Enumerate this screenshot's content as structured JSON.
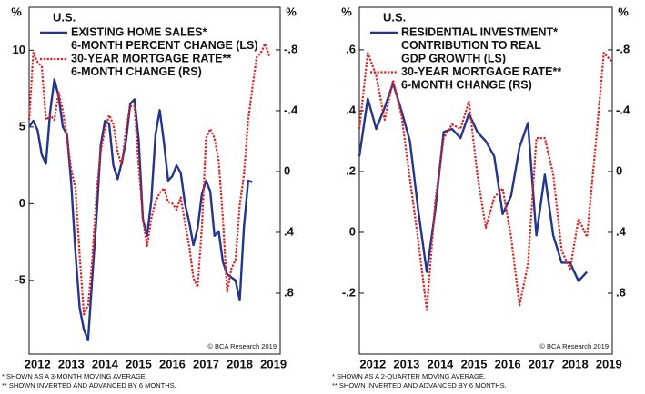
{
  "chart_data": [
    {
      "type": "line",
      "title": "U.S.",
      "y_unit": "%",
      "y2_unit": "%",
      "source": "© BCA Research 2019",
      "footnotes": [
        "* SHOWN AS A 3-MONTH MOVING AVERAGE.",
        "** SHOWN INVERTED AND ADVANCED BY 6 MONTHS."
      ],
      "xlim": [
        2012.25,
        2019.7
      ],
      "xticks": [
        {
          "value": 2012.5,
          "label": "2012"
        },
        {
          "value": 2013.5,
          "label": "2013"
        },
        {
          "value": 2014.5,
          "label": "2014"
        },
        {
          "value": 2015.5,
          "label": "2015"
        },
        {
          "value": 2016.5,
          "label": "2016"
        },
        {
          "value": 2017.5,
          "label": "2017"
        },
        {
          "value": 2018.5,
          "label": "2018"
        },
        {
          "value": 2019.5,
          "label": "2019"
        }
      ],
      "ylim": [
        -9.8,
        12.8
      ],
      "yticks": [
        -5,
        0,
        5,
        10
      ],
      "y2lim": [
        1.2,
        -1.08
      ],
      "y2ticks": [
        {
          "value": -0.8,
          "label": "-.8"
        },
        {
          "value": -0.4,
          "label": "-.4"
        },
        0,
        {
          "value": 0.4,
          "label": ".4"
        },
        {
          "value": 0.8,
          "label": ".8"
        }
      ],
      "x": [
        2012.25,
        2012.375,
        2012.5,
        2012.625,
        2012.75,
        2012.875,
        2013,
        2013.125,
        2013.25,
        2013.375,
        2013.5,
        2013.625,
        2013.75,
        2013.875,
        2014,
        2014.125,
        2014.25,
        2014.375,
        2014.5,
        2014.625,
        2014.75,
        2014.875,
        2015,
        2015.125,
        2015.25,
        2015.375,
        2015.5,
        2015.625,
        2015.75,
        2015.875,
        2016,
        2016.125,
        2016.25,
        2016.375,
        2016.5,
        2016.625,
        2016.75,
        2016.875,
        2017,
        2017.125,
        2017.25,
        2017.375,
        2017.5,
        2017.625,
        2017.75,
        2017.875,
        2018,
        2018.125,
        2018.25,
        2018.375,
        2018.5,
        2018.625,
        2018.75,
        2018.875,
        2019,
        2019.125,
        2019.25,
        2019.375,
        2019.5,
        2019.625
      ],
      "series": [
        {
          "name": [
            "EXISTING HOME SALES*",
            "6-MONTH PERCENT CHANGE (LS)"
          ],
          "color": "#23358f",
          "style": "solid",
          "values": [
            5.0,
            5.4,
            4.8,
            3.2,
            2.6,
            6.0,
            8.1,
            7.0,
            5.0,
            4.5,
            1.3,
            -3.2,
            -6.8,
            -8.2,
            -8.9,
            -4.8,
            -0.9,
            3.8,
            5.4,
            5.2,
            2.5,
            1.6,
            2.7,
            4.1,
            6.5,
            6.8,
            4.2,
            -1.0,
            -2.1,
            0.2,
            4.5,
            6.1,
            4.0,
            1.5,
            1.8,
            2.5,
            2.0,
            0.0,
            -1.2,
            -2.7,
            -1.6,
            0.6,
            1.5,
            0.8,
            -2.1,
            -1.8,
            -3.8,
            -4.6,
            -4.8,
            -5.0,
            -6.3,
            -1.5,
            1.5,
            1.4,
            null,
            null,
            null,
            null,
            null,
            null
          ]
        },
        {
          "name": [
            "30-YEAR MORTGAGE RATE**",
            "6-MONTH CHANGE (RS)"
          ],
          "color": "#e01e1e",
          "style": "dotted",
          "axis": "y2",
          "values": [
            -0.34,
            -0.78,
            -0.72,
            -0.69,
            -0.34,
            -0.37,
            -0.34,
            -0.52,
            -0.4,
            -0.22,
            -0.01,
            0.11,
            0.55,
            0.94,
            0.88,
            0.58,
            0.14,
            -0.13,
            -0.28,
            -0.37,
            -0.31,
            -0.13,
            -0.04,
            -0.28,
            -0.43,
            -0.43,
            -0.04,
            0.31,
            0.49,
            0.31,
            0.2,
            0.14,
            0.11,
            0.2,
            0.21,
            0.25,
            0.17,
            0.34,
            0.49,
            0.7,
            0.76,
            0.37,
            -0.22,
            -0.28,
            -0.22,
            -0.07,
            0.31,
            0.79,
            0.64,
            0.58,
            0.22,
            0.02,
            -0.34,
            -0.55,
            -0.75,
            -0.78,
            -0.84,
            -0.76,
            null,
            null
          ]
        }
      ]
    },
    {
      "type": "line",
      "title": "U.S.",
      "y_unit": "%",
      "y2_unit": "%",
      "source": "© BCA Research 2019",
      "footnotes": [
        "* SHOWN AS A 2-QUARTER MOVING AVERAGE.",
        "** SHOWN INVERTED AND ADVANCED BY 6 MONTHS."
      ],
      "xlim": [
        2012.1,
        2019.6
      ],
      "xticks": [
        {
          "value": 2012.5,
          "label": "2012"
        },
        {
          "value": 2013.5,
          "label": "2013"
        },
        {
          "value": 2014.5,
          "label": "2014"
        },
        {
          "value": 2015.5,
          "label": "2015"
        },
        {
          "value": 2016.5,
          "label": "2016"
        },
        {
          "value": 2017.5,
          "label": "2017"
        },
        {
          "value": 2018.5,
          "label": "2018"
        },
        {
          "value": 2019.5,
          "label": "2019"
        }
      ],
      "ylim": [
        -0.4,
        0.74
      ],
      "yticks": [
        {
          "value": -0.2,
          "label": "-.2"
        },
        0,
        {
          "value": 0.2,
          "label": ".2"
        },
        {
          "value": 0.4,
          "label": ".4"
        },
        {
          "value": 0.6,
          "label": ".6"
        }
      ],
      "y2lim": [
        1.2,
        -1.08
      ],
      "y2ticks": [
        {
          "value": -0.8,
          "label": "-.8"
        },
        {
          "value": -0.4,
          "label": "-.4"
        },
        0,
        {
          "value": 0.4,
          "label": ".4"
        },
        {
          "value": 0.8,
          "label": ".8"
        }
      ],
      "x": [
        2012.1,
        2012.35,
        2012.6,
        2012.85,
        2013.1,
        2013.35,
        2013.6,
        2013.85,
        2014.1,
        2014.35,
        2014.6,
        2014.85,
        2015.1,
        2015.35,
        2015.6,
        2015.85,
        2016.1,
        2016.35,
        2016.6,
        2016.85,
        2017.1,
        2017.35,
        2017.6,
        2017.85,
        2018.1,
        2018.35,
        2018.6,
        2018.85,
        2019.1,
        2019.35,
        2019.6
      ],
      "series": [
        {
          "name": [
            "RESIDENTIAL INVESTMENT*",
            "CONTRIBUTION TO REAL",
            "GDP GROWTH (LS)"
          ],
          "color": "#23358f",
          "style": "solid",
          "values": [
            0.25,
            0.44,
            0.34,
            0.41,
            0.49,
            0.4,
            0.3,
            0.07,
            -0.13,
            0.07,
            0.33,
            0.34,
            0.31,
            0.39,
            0.33,
            0.3,
            0.25,
            0.06,
            0.12,
            0.28,
            0.36,
            -0.01,
            0.19,
            -0.01,
            -0.1,
            -0.1,
            -0.16,
            -0.13,
            null,
            null,
            null
          ]
        },
        {
          "name": [
            "30-YEAR MORTGAGE RATE**",
            "6-MONTH CHANGE (RS)"
          ],
          "color": "#e01e1e",
          "style": "dotted",
          "axis": "y2",
          "values": [
            -0.28,
            -0.78,
            -0.63,
            -0.34,
            -0.6,
            -0.37,
            0.05,
            0.46,
            0.91,
            0.2,
            -0.22,
            -0.31,
            -0.28,
            -0.46,
            0.02,
            0.37,
            0.17,
            0.11,
            0.43,
            0.88,
            0.61,
            -0.22,
            -0.22,
            0.02,
            0.52,
            0.64,
            0.31,
            0.43,
            -0.16,
            -0.78,
            -0.72
          ]
        }
      ]
    }
  ]
}
